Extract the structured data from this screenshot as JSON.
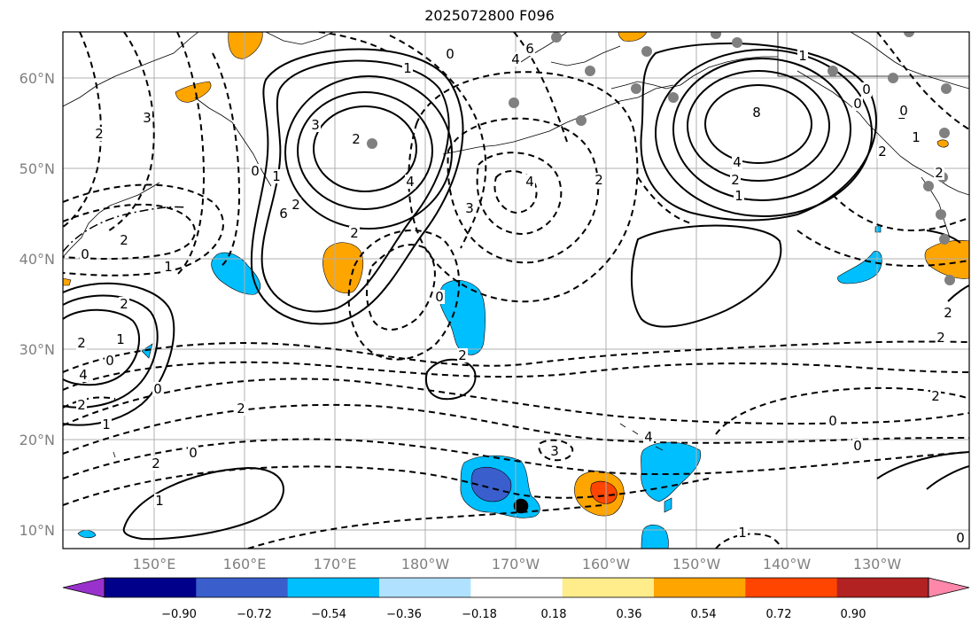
{
  "title": "2025072800 F096",
  "lat_labels": [
    "60°N",
    "50°N",
    "40°N",
    "30°N",
    "20°N",
    "10°N"
  ],
  "lon_labels": [
    "150°E",
    "160°E",
    "170°E",
    "180°W",
    "170°W",
    "160°W",
    "150°W",
    "140°W",
    "130°W"
  ],
  "colorbar": {
    "colors": [
      "#9932cc",
      "#00008b",
      "#3a5fcd",
      "#00bfff",
      "#b0e2ff",
      "#ffffff",
      "#ffec8b",
      "#ffa500",
      "#ff4500",
      "#b22222",
      "#ff88aa"
    ],
    "tick_labels": [
      "−0.90",
      "−0.72",
      "−0.54",
      "−0.36",
      "−0.18",
      "0.18",
      "0.36",
      "0.54",
      "0.72",
      "0.90"
    ]
  },
  "contour_labels": [
    "1",
    "0",
    "2",
    "3",
    "4",
    "6",
    "8",
    "4",
    "2",
    "1",
    "1",
    "0",
    "0",
    "2",
    "2",
    "0",
    "1",
    "2",
    "3",
    "4",
    "2",
    "1",
    "0",
    "2",
    "6",
    "4",
    "3",
    "2",
    "1",
    "0",
    "2",
    "4",
    "2",
    "1",
    "0",
    "0",
    "1",
    "2",
    "2",
    "0",
    "2",
    "3",
    "4",
    "2",
    "0",
    "1",
    "2",
    "2",
    "0",
    "0",
    "2",
    "2",
    "1",
    "0",
    "2"
  ]
}
